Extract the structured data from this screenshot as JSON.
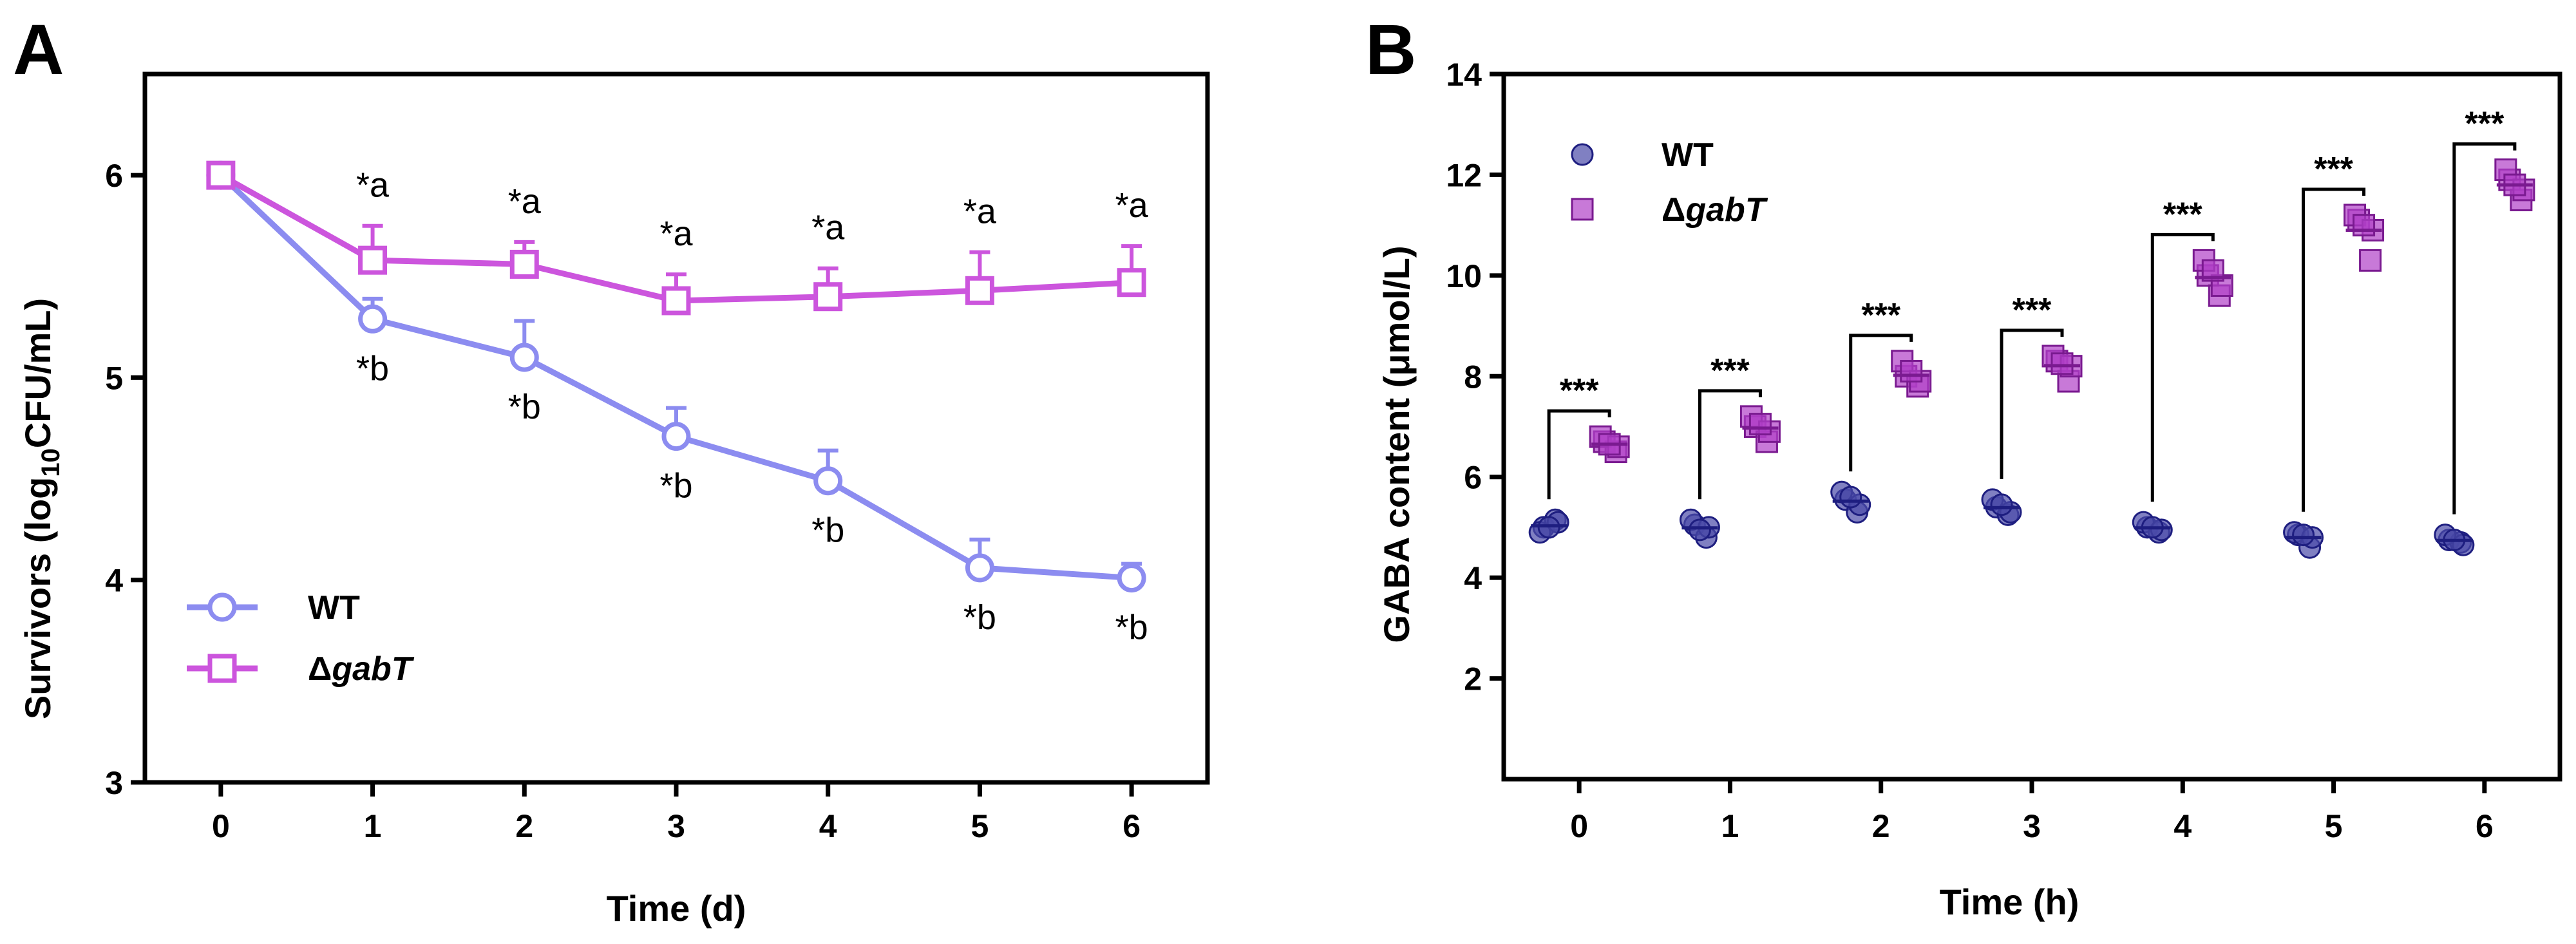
{
  "chart_data": [
    {
      "panel": "A",
      "type": "line",
      "xlabel": "Time (d)",
      "ylabel_main": "Survivors (log",
      "ylabel_sub": "10",
      "ylabel_end": "CFU/mL)",
      "x": [
        0,
        1,
        2,
        3,
        4,
        5,
        6
      ],
      "xlim": [
        -0.5,
        6.5
      ],
      "ylim": [
        3,
        6.5
      ],
      "yticks": [
        3,
        4,
        5,
        6
      ],
      "series": [
        {
          "name": "WT",
          "name_italic": "",
          "color": "#8c8cf0",
          "marker": "circle",
          "values": [
            6.0,
            5.29,
            5.1,
            4.71,
            4.49,
            4.06,
            4.01
          ],
          "error": [
            0.0,
            0.1,
            0.18,
            0.14,
            0.15,
            0.14,
            0.07
          ],
          "annotations": [
            "",
            "*b",
            "*b",
            "*b",
            "*b",
            "*b",
            "*b"
          ]
        },
        {
          "name": "Δ",
          "name_italic": "gabT",
          "color": "#cc55dd",
          "marker": "square",
          "values": [
            6.0,
            5.58,
            5.56,
            5.38,
            5.4,
            5.43,
            5.47
          ],
          "error": [
            0.0,
            0.17,
            0.11,
            0.13,
            0.14,
            0.19,
            0.18
          ],
          "annotations": [
            "",
            "*a",
            "*a",
            "*a",
            "*a",
            "*a",
            "*a"
          ]
        }
      ]
    },
    {
      "panel": "B",
      "type": "scatter",
      "xlabel": "Time (h)",
      "ylabel": "GABA content (μmol/L)",
      "categories": [
        "0",
        "1",
        "2",
        "3",
        "4",
        "5",
        "6"
      ],
      "ylim": [
        0,
        14
      ],
      "yticks": [
        2,
        4,
        6,
        8,
        10,
        12,
        14
      ],
      "significance": "***",
      "series": [
        {
          "name": "WT",
          "name_italic": "",
          "color": "#4a4aa8",
          "edge": "#1e1e80",
          "marker": "circle",
          "points": [
            [
              5.0,
              5.15,
              4.9,
              5.1,
              5.0
            ],
            [
              5.05,
              4.8,
              5.15,
              5.0,
              4.95
            ],
            [
              5.55,
              5.3,
              5.7,
              5.45,
              5.6
            ],
            [
              5.4,
              5.25,
              5.55,
              5.3,
              5.45
            ],
            [
              5.0,
              4.9,
              5.1,
              4.95,
              5.0
            ],
            [
              4.85,
              4.6,
              4.9,
              4.8,
              4.85
            ],
            [
              4.75,
              4.7,
              4.85,
              4.65,
              4.75
            ]
          ]
        },
        {
          "name": "Δ",
          "name_italic": "gabT",
          "color": "#b040c8",
          "edge": "#7a1a90",
          "marker": "square",
          "points": [
            [
              6.7,
              6.5,
              6.8,
              6.6,
              6.65
            ],
            [
              7.0,
              6.7,
              7.2,
              6.9,
              7.05
            ],
            [
              8.0,
              7.8,
              8.3,
              7.9,
              8.1
            ],
            [
              8.3,
              7.9,
              8.4,
              8.2,
              8.25
            ],
            [
              10.0,
              9.6,
              10.3,
              9.8,
              10.1
            ],
            [
              11.1,
              10.3,
              11.2,
              10.9,
              11.0
            ],
            [
              11.9,
              11.5,
              12.1,
              11.7,
              11.8
            ]
          ]
        }
      ]
    }
  ]
}
